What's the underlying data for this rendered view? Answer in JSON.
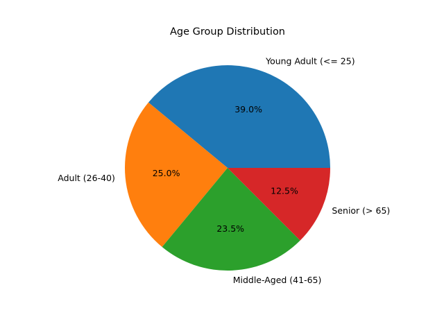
{
  "chart_data": {
    "type": "pie",
    "title": "Age Group Distribution",
    "slices": [
      {
        "label": "Young Adult (<= 25)",
        "value": 39.0,
        "percent_label": "39.0%",
        "color": "#1f77b4"
      },
      {
        "label": "Adult (26-40)",
        "value": 25.0,
        "percent_label": "25.0%",
        "color": "#ff7f0e"
      },
      {
        "label": "Middle-Aged (41-65)",
        "value": 23.5,
        "percent_label": "23.5%",
        "color": "#2ca02c"
      },
      {
        "label": "Senior (> 65)",
        "value": 12.5,
        "percent_label": "12.5%",
        "color": "#d62728"
      }
    ],
    "start_angle_deg": 0,
    "direction": "counterclockwise",
    "legend": "none"
  }
}
